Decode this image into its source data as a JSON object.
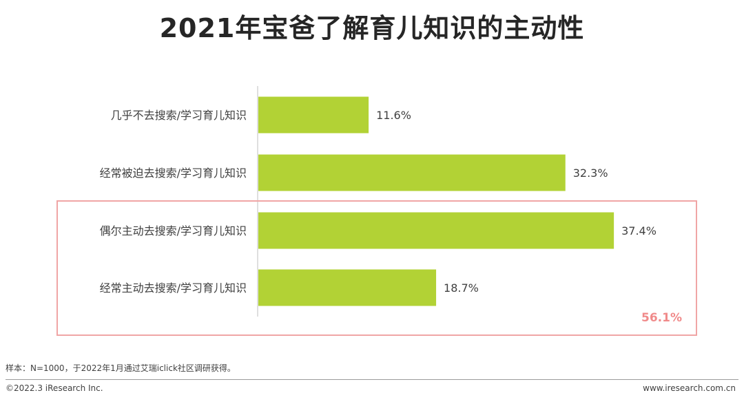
{
  "title": "2021年宝爸了解育儿知识的主动性",
  "chart_data": {
    "type": "bar",
    "orientation": "horizontal",
    "categories": [
      "几乎不去搜索/学习育儿知识",
      "经常被迫去搜索/学习育儿知识",
      "偶尔主动去搜索/学习育儿知识",
      "经常主动去搜索/学习育儿知识"
    ],
    "values": [
      11.6,
      32.3,
      37.4,
      18.7
    ],
    "value_labels": [
      "11.6%",
      "32.3%",
      "37.4%",
      "18.7%"
    ],
    "unit": "%",
    "xlim": [
      0,
      40
    ],
    "bar_color": "#b2d235",
    "grid": false,
    "legend": "none"
  },
  "highlight": {
    "total_label": "56.1%",
    "color": "#f0a5a5"
  },
  "note": "样本：N=1000，于2022年1月通过艾瑞iclick社区调研获得。",
  "footer": {
    "left": "©2022.3 iResearch Inc.",
    "right": "www.iresearch.com.cn"
  }
}
